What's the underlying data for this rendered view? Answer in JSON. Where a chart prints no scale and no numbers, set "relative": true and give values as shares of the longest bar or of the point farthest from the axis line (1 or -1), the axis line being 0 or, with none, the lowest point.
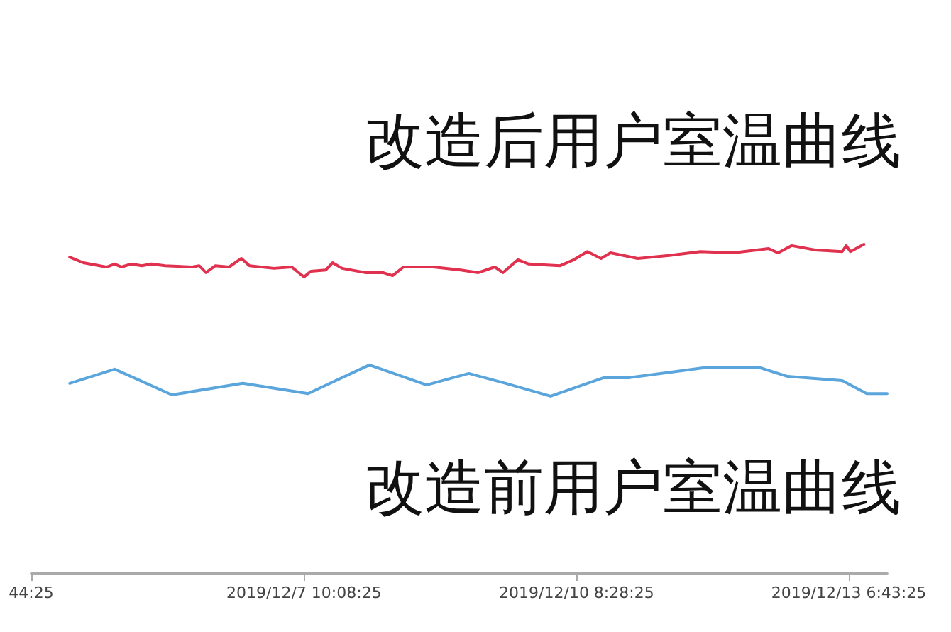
{
  "chart_data": {
    "type": "line",
    "relative": true,
    "grid": false,
    "marker": "none",
    "line_style": "solid",
    "annotations": [
      "改造后用户室温曲线",
      "改造前用户室温曲线"
    ],
    "xlim": [
      "2019-12-04T11:44",
      "2019-12-13T16:37"
    ],
    "xticks": [
      {
        "value": "2019-12-04T11:44",
        "label": "44:25"
      },
      {
        "value": "2019-12-07T10:08",
        "label": "2019/12/7 10:08:25"
      },
      {
        "value": "2019-12-10T08:28",
        "label": "2019/12/10 8:28:25"
      },
      {
        "value": "2019-12-13T06:43",
        "label": "2019/12/13 6:43:25"
      }
    ],
    "series": [
      {
        "color": "#e0314f",
        "x": [
          "2019-12-04T21:40",
          "2019-12-05T01:10",
          "2019-12-05T07:09",
          "2019-12-05T09:16",
          "2019-12-05T11:01",
          "2019-12-05T13:29",
          "2019-12-05T16:17",
          "2019-12-05T18:45",
          "2019-12-05T22:16",
          "2019-12-06T05:18",
          "2019-12-06T07:04",
          "2019-12-06T08:49",
          "2019-12-06T11:17",
          "2019-12-06T14:47",
          "2019-12-06T17:58",
          "2019-12-06T20:04",
          "2019-12-07T02:23",
          "2019-12-07T06:58",
          "2019-12-07T10:08",
          "2019-12-07T11:53",
          "2019-12-07T15:46",
          "2019-12-07T17:31",
          "2019-12-07T19:58",
          "2019-12-08T01:57",
          "2019-12-08T06:31",
          "2019-12-08T08:59",
          "2019-12-08T11:48",
          "2019-12-08T19:32",
          "2019-12-09T02:34",
          "2019-12-09T07:08",
          "2019-12-09T11:21",
          "2019-12-09T13:28",
          "2019-12-09T17:20",
          "2019-12-09T20:08",
          "2019-12-10T04:14",
          "2019-12-10T07:45",
          "2019-12-10T11:16",
          "2019-12-10T14:47",
          "2019-12-10T17:14",
          "2019-12-11T00:16",
          "2019-12-11T08:22",
          "2019-12-11T16:27",
          "2019-12-12T00:53",
          "2019-12-12T10:02",
          "2019-12-12T12:29",
          "2019-12-12T16:00",
          "2019-12-12T21:59",
          "2019-12-13T05:01",
          "2019-12-13T06:04",
          "2019-12-13T07:07",
          "2019-12-13T10:38"
        ],
        "values": [
          0.961,
          0.944,
          0.931,
          0.94,
          0.931,
          0.94,
          0.935,
          0.94,
          0.935,
          0.931,
          0.935,
          0.914,
          0.935,
          0.931,
          0.957,
          0.935,
          0.927,
          0.931,
          0.901,
          0.918,
          0.922,
          0.944,
          0.927,
          0.914,
          0.914,
          0.905,
          0.931,
          0.931,
          0.922,
          0.914,
          0.931,
          0.914,
          0.953,
          0.94,
          0.935,
          0.953,
          0.978,
          0.957,
          0.974,
          0.957,
          0.966,
          0.978,
          0.974,
          0.987,
          0.974,
          0.996,
          0.983,
          0.978,
          0.996,
          0.978,
          1.0
        ]
      },
      {
        "color": "#5aa5dc",
        "x": [
          "2019-12-04T21:40",
          "2019-12-05T09:16",
          "2019-12-06T00:02",
          "2019-12-06T18:19",
          "2019-12-07T11:11",
          "2019-12-08T03:01",
          "2019-12-08T17:46",
          "2019-12-09T04:40",
          "2019-12-09T14:10",
          "2019-12-10T01:46",
          "2019-12-10T15:29",
          "2019-12-10T21:49",
          "2019-12-11T17:09",
          "2019-12-12T07:55",
          "2019-12-12T14:56",
          "2019-12-13T05:01",
          "2019-12-13T11:21",
          "2019-12-13T16:37"
        ],
        "values": [
          0.578,
          0.621,
          0.543,
          0.578,
          0.547,
          0.634,
          0.573,
          0.608,
          0.578,
          0.539,
          0.595,
          0.595,
          0.625,
          0.625,
          0.599,
          0.586,
          0.547,
          0.547
        ]
      }
    ]
  }
}
